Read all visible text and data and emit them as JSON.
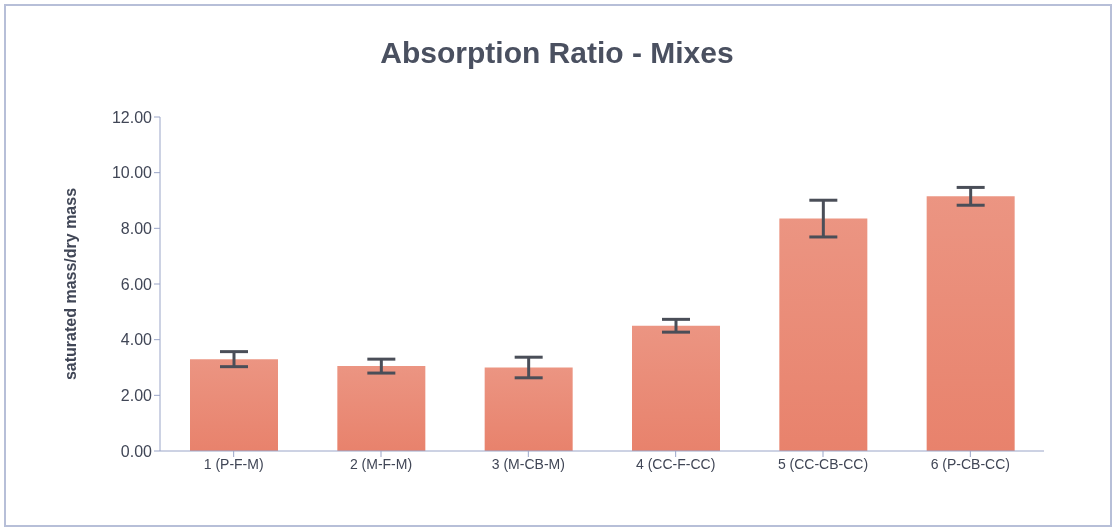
{
  "chart_data": {
    "type": "bar",
    "title": "Absorption Ratio - Mixes",
    "ylabel": "saturated mass/dry mass",
    "categories": [
      "1 (P-F-M)",
      "2 (M-F-M)",
      "3 (M-CB-M)",
      "4 (CC-F-CC)",
      "5 (CC-CB-CC)",
      "6 (P-CB-CC)"
    ],
    "values": [
      3.3,
      3.05,
      3.0,
      4.5,
      8.35,
      9.15
    ],
    "errors": [
      0.27,
      0.25,
      0.37,
      0.23,
      0.66,
      0.32
    ],
    "color": "#e8826c",
    "ylim": [
      0,
      12
    ],
    "yticks": [
      {
        "value": 0,
        "label": "0.00"
      },
      {
        "value": 2,
        "label": "2.00"
      },
      {
        "value": 4,
        "label": "4.00"
      },
      {
        "value": 6,
        "label": "6.00"
      },
      {
        "value": 8,
        "label": "8.00"
      },
      {
        "value": 10,
        "label": "10.00"
      },
      {
        "value": 12,
        "label": "12.00"
      }
    ],
    "grid": false,
    "legend": false
  }
}
